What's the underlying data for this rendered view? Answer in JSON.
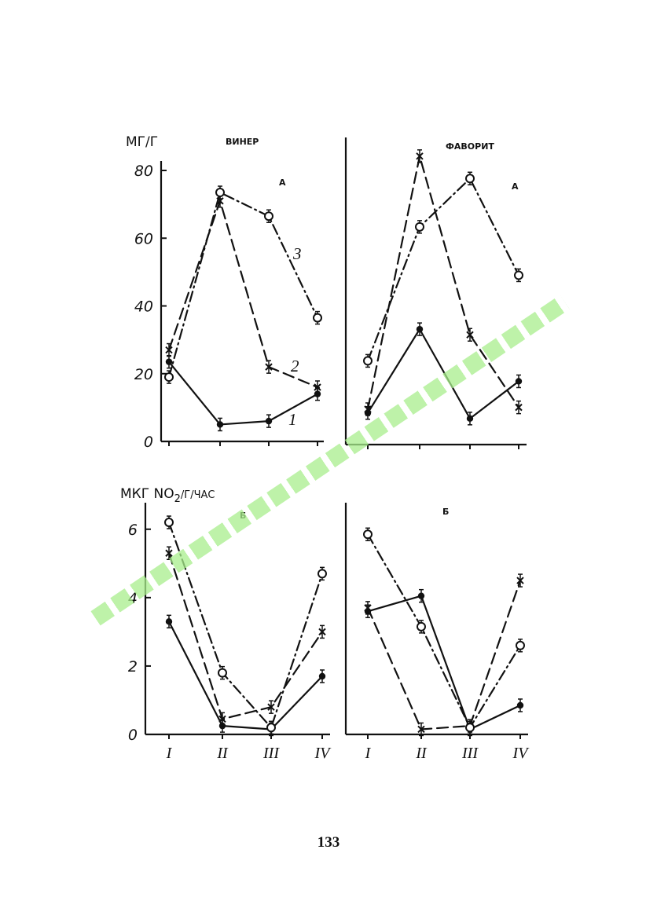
{
  "page_number": "133",
  "chart_data": [
    {
      "type": "line",
      "panel_title": "ВИНЕР",
      "panel_letter": "А",
      "ylabel": "МГ/Г",
      "ylim": [
        0,
        80
      ],
      "yticks": [
        0,
        20,
        40,
        60,
        80
      ],
      "categories": [
        "I",
        "II",
        "III",
        "IV"
      ],
      "series": [
        {
          "name": "1",
          "marker": "filled-circle",
          "style": "solid",
          "values": [
            23.5,
            5,
            6,
            14
          ]
        },
        {
          "name": "2",
          "marker": "cross",
          "style": "dashed",
          "values": [
            27,
            71,
            22,
            16
          ]
        },
        {
          "name": "3",
          "marker": "open-circle",
          "style": "dash-dot",
          "values": [
            19,
            73.5,
            66.5,
            36.5
          ]
        }
      ]
    },
    {
      "type": "line",
      "panel_title": "ФАВОРИТ",
      "panel_letter": "А",
      "ylim": [
        0,
        80
      ],
      "yticks": [],
      "categories": [
        "I",
        "II",
        "III",
        "IV"
      ],
      "series": [
        {
          "name": "1",
          "marker": "filled-circle",
          "style": "solid",
          "values": [
            8.5,
            31,
            7,
            17
          ]
        },
        {
          "name": "2",
          "marker": "cross",
          "style": "dashed",
          "values": [
            9.5,
            77.5,
            29.5,
            10
          ]
        },
        {
          "name": "3",
          "marker": "open-circle",
          "style": "dash-dot",
          "values": [
            22.5,
            58.5,
            71.5,
            45.5
          ]
        }
      ]
    },
    {
      "type": "line",
      "panel_letter": "Б",
      "ylabel": "МКГ NO2/Г/ЧАС",
      "ylim": [
        0,
        6.5
      ],
      "yticks": [
        0,
        2,
        4,
        6
      ],
      "categories": [
        "I",
        "II",
        "III",
        "IV"
      ],
      "series": [
        {
          "name": "1",
          "marker": "filled-circle",
          "style": "solid",
          "values": [
            3.3,
            0.25,
            0.15,
            1.7
          ]
        },
        {
          "name": "2",
          "marker": "cross",
          "style": "dashed",
          "values": [
            5.3,
            0.45,
            0.8,
            3.0
          ]
        },
        {
          "name": "3",
          "marker": "open-circle",
          "style": "dash-dot",
          "values": [
            6.2,
            1.8,
            0.2,
            4.7
          ]
        }
      ]
    },
    {
      "type": "line",
      "panel_letter": "Б",
      "ylim": [
        0,
        6.5
      ],
      "yticks": [],
      "categories": [
        "I",
        "II",
        "III",
        "IV"
      ],
      "series": [
        {
          "name": "1",
          "marker": "filled-circle",
          "style": "solid",
          "values": [
            3.6,
            4.05,
            0.15,
            0.85
          ]
        },
        {
          "name": "2",
          "marker": "cross",
          "style": "dashed",
          "values": [
            3.7,
            0.15,
            0.25,
            4.5
          ]
        },
        {
          "name": "3",
          "marker": "open-circle",
          "style": "dash-dot",
          "values": [
            5.85,
            3.15,
            0.2,
            2.6
          ]
        }
      ]
    }
  ],
  "curve_labels": [
    "1",
    "2",
    "3"
  ],
  "ylabel_b_prefix": "МКГ NO",
  "ylabel_b_sub": "2",
  "ylabel_b_suffix": "/Г/ЧАС",
  "colors": {
    "ink": "#111111",
    "watermark": "#a8ee8c"
  }
}
